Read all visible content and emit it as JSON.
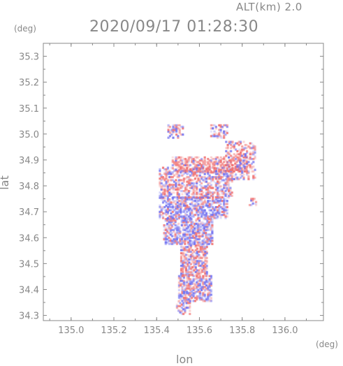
{
  "header": {
    "alt_label": "ALT(km) 2.0",
    "timestamp": "2020/09/17 01:28:30"
  },
  "chart_data": {
    "type": "heatmap",
    "title": "2020/09/17 01:28:30",
    "subtitle": "ALT(km) 2.0",
    "xlabel": "lon",
    "ylabel": "lat",
    "x_unit": "(deg)",
    "y_unit": "(deg)",
    "xlim": [
      134.87,
      136.18
    ],
    "ylim": [
      34.28,
      35.35
    ],
    "xticks": [
      "135.0",
      "135.2",
      "135.4",
      "135.6",
      "135.8",
      "136.0"
    ],
    "xtick_values": [
      135.0,
      135.2,
      135.4,
      135.6,
      135.8,
      136.0
    ],
    "yticks": [
      "34.3",
      "34.4",
      "34.5",
      "34.6",
      "34.7",
      "34.8",
      "34.9",
      "35.0",
      "35.1",
      "35.2",
      "35.3"
    ],
    "ytick_values": [
      34.3,
      34.4,
      34.5,
      34.6,
      34.7,
      34.8,
      34.9,
      35.0,
      35.1,
      35.2,
      35.3
    ],
    "grid": false,
    "colors": {
      "positive": "#f07070",
      "negative": "#6f6ff0",
      "axis": "#888888"
    },
    "regions": [
      {
        "lon": [
          135.49,
          135.55
        ],
        "lat": [
          34.31,
          34.36
        ],
        "density": 0.5,
        "bias": 0.5
      },
      {
        "lon": [
          135.5,
          135.65
        ],
        "lat": [
          34.36,
          34.46
        ],
        "density": 0.65,
        "bias": 0.45
      },
      {
        "lon": [
          135.51,
          135.63
        ],
        "lat": [
          34.46,
          34.58
        ],
        "density": 0.7,
        "bias": 0.6
      },
      {
        "lon": [
          135.43,
          135.66
        ],
        "lat": [
          34.58,
          34.68
        ],
        "density": 0.7,
        "bias": 0.35
      },
      {
        "lon": [
          135.41,
          135.73
        ],
        "lat": [
          34.68,
          34.76
        ],
        "density": 0.6,
        "bias": 0.3
      },
      {
        "lon": [
          135.41,
          135.75
        ],
        "lat": [
          34.76,
          34.88
        ],
        "density": 0.55,
        "bias": 0.55
      },
      {
        "lon": [
          135.47,
          135.82
        ],
        "lat": [
          34.86,
          34.92
        ],
        "density": 0.6,
        "bias": 0.8
      },
      {
        "lon": [
          135.72,
          135.86
        ],
        "lat": [
          34.83,
          34.98
        ],
        "density": 0.4,
        "bias": 0.6
      },
      {
        "lon": [
          135.45,
          135.52
        ],
        "lat": [
          34.99,
          35.04
        ],
        "density": 0.45,
        "bias": 0.5
      },
      {
        "lon": [
          135.65,
          135.73
        ],
        "lat": [
          34.99,
          35.04
        ],
        "density": 0.45,
        "bias": 0.6
      },
      {
        "lon": [
          135.83,
          135.86
        ],
        "lat": [
          34.73,
          34.76
        ],
        "density": 0.5,
        "bias": 0.7
      }
    ]
  }
}
